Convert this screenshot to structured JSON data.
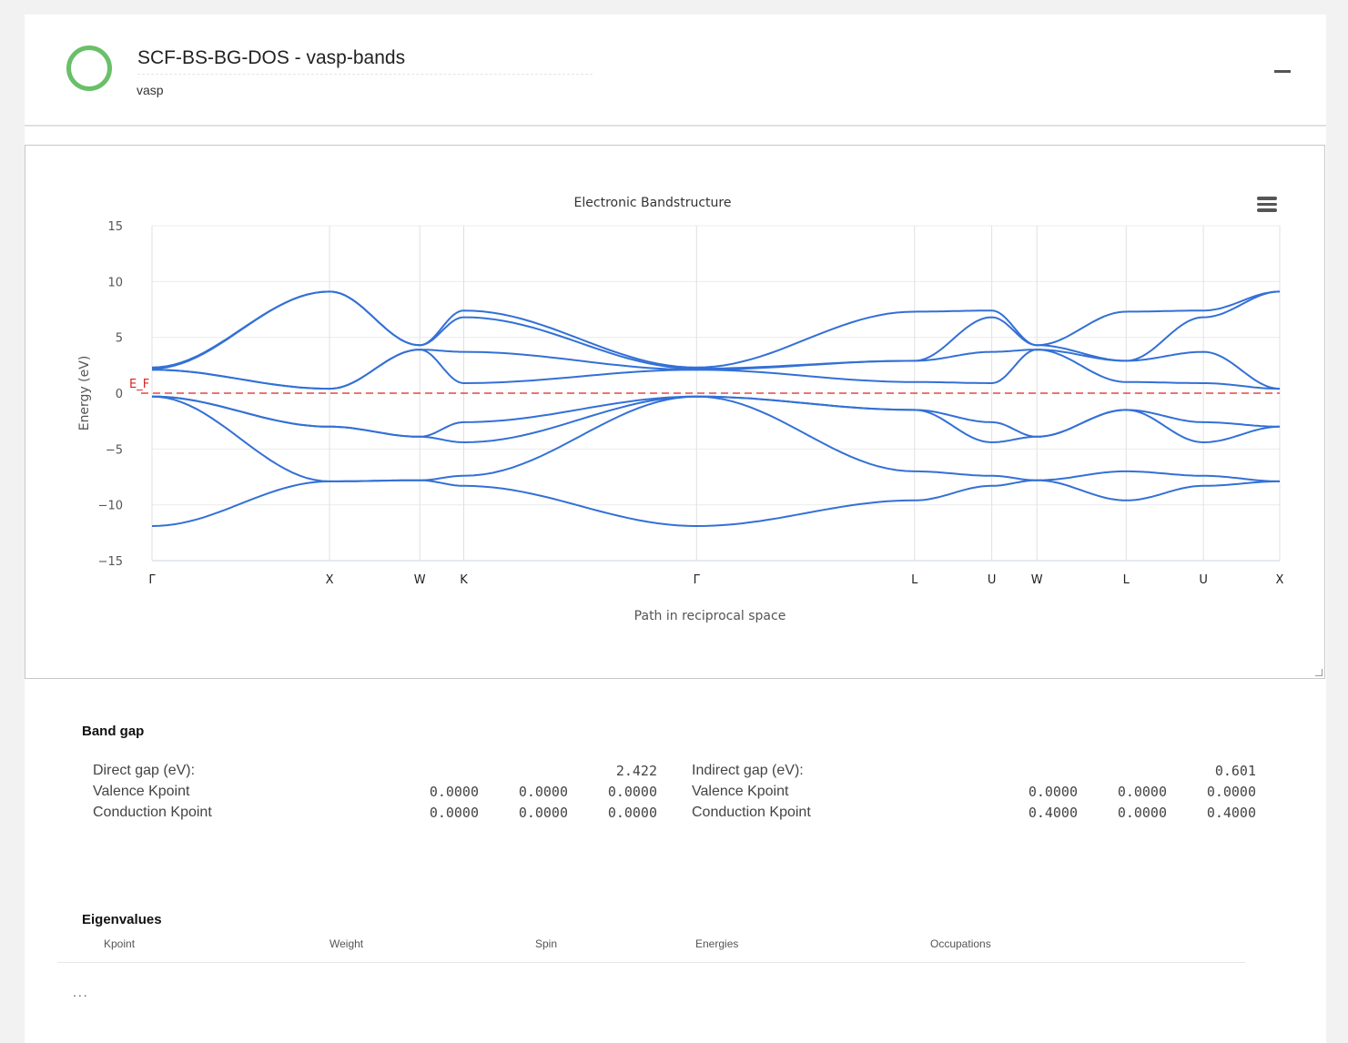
{
  "header": {
    "title": "SCF-BS-BG-DOS - vasp-bands",
    "subtitle": "vasp",
    "status_color": "#6abf69"
  },
  "chart_data": {
    "type": "line",
    "title": "Electronic Bandstructure",
    "xlabel": "Path in reciprocal space",
    "ylabel": "Energy (eV)",
    "ylim": [
      -15,
      15
    ],
    "yticks": [
      "15",
      "10",
      "5",
      "0",
      "−5",
      "−10",
      "−15"
    ],
    "grid": true,
    "fermi_label": "E_F",
    "fermi_energy": 0,
    "fermi_color": "#e02020",
    "line_color": "#3370d6",
    "kpoint_labels": [
      "Γ",
      "X",
      "W",
      "K",
      "Γ",
      "L",
      "U",
      "W",
      "L",
      "U",
      "X"
    ],
    "kpoint_positions": [
      0,
      1.0,
      1.508,
      1.756,
      3.067,
      4.295,
      4.73,
      4.984,
      5.487,
      5.922,
      6.352
    ],
    "bands": [
      [
        -11.9,
        -7.9,
        -7.8,
        -8.3,
        -11.9,
        -9.6,
        -8.3,
        -7.8,
        -9.6,
        -8.3,
        -7.9
      ],
      [
        -0.3,
        -7.9,
        -7.8,
        -7.4,
        -0.3,
        -7.0,
        -7.4,
        -7.8,
        -7.0,
        -7.4,
        -7.9
      ],
      [
        -0.3,
        -3.0,
        -3.9,
        -4.4,
        -0.3,
        -1.5,
        -4.4,
        -3.9,
        -1.5,
        -4.4,
        -3.0
      ],
      [
        -0.3,
        -3.0,
        -3.9,
        -2.6,
        -0.3,
        -1.5,
        -2.6,
        -3.9,
        -1.5,
        -2.6,
        -3.0
      ],
      [
        2.1,
        0.4,
        3.9,
        0.9,
        2.1,
        1.0,
        0.9,
        3.9,
        1.0,
        0.9,
        0.4
      ],
      [
        2.1,
        0.4,
        3.9,
        3.7,
        2.1,
        2.9,
        3.7,
        3.9,
        2.9,
        3.7,
        0.4
      ],
      [
        2.2,
        9.1,
        4.3,
        6.8,
        2.2,
        2.9,
        6.8,
        4.3,
        2.9,
        6.8,
        9.1
      ],
      [
        2.3,
        9.1,
        4.3,
        7.4,
        2.3,
        7.3,
        7.4,
        4.3,
        7.3,
        7.4,
        9.1
      ]
    ]
  },
  "bandgap": {
    "heading": "Band gap",
    "direct": {
      "label": "Direct gap (eV):",
      "value": "2.422",
      "valence_label": "Valence Kpoint",
      "valence": [
        "0.0000",
        "0.0000",
        "0.0000"
      ],
      "conduction_label": "Conduction Kpoint",
      "conduction": [
        "0.0000",
        "0.0000",
        "0.0000"
      ]
    },
    "indirect": {
      "label": "Indirect gap (eV):",
      "value": "0.601",
      "valence_label": "Valence Kpoint",
      "valence": [
        "0.0000",
        "0.0000",
        "0.0000"
      ],
      "conduction_label": "Conduction Kpoint",
      "conduction": [
        "0.4000",
        "0.0000",
        "0.4000"
      ]
    }
  },
  "eigenvalues": {
    "heading": "Eigenvalues",
    "columns": [
      "Kpoint",
      "Weight",
      "Spin",
      "Energies",
      "Occupations"
    ],
    "more": "..."
  }
}
